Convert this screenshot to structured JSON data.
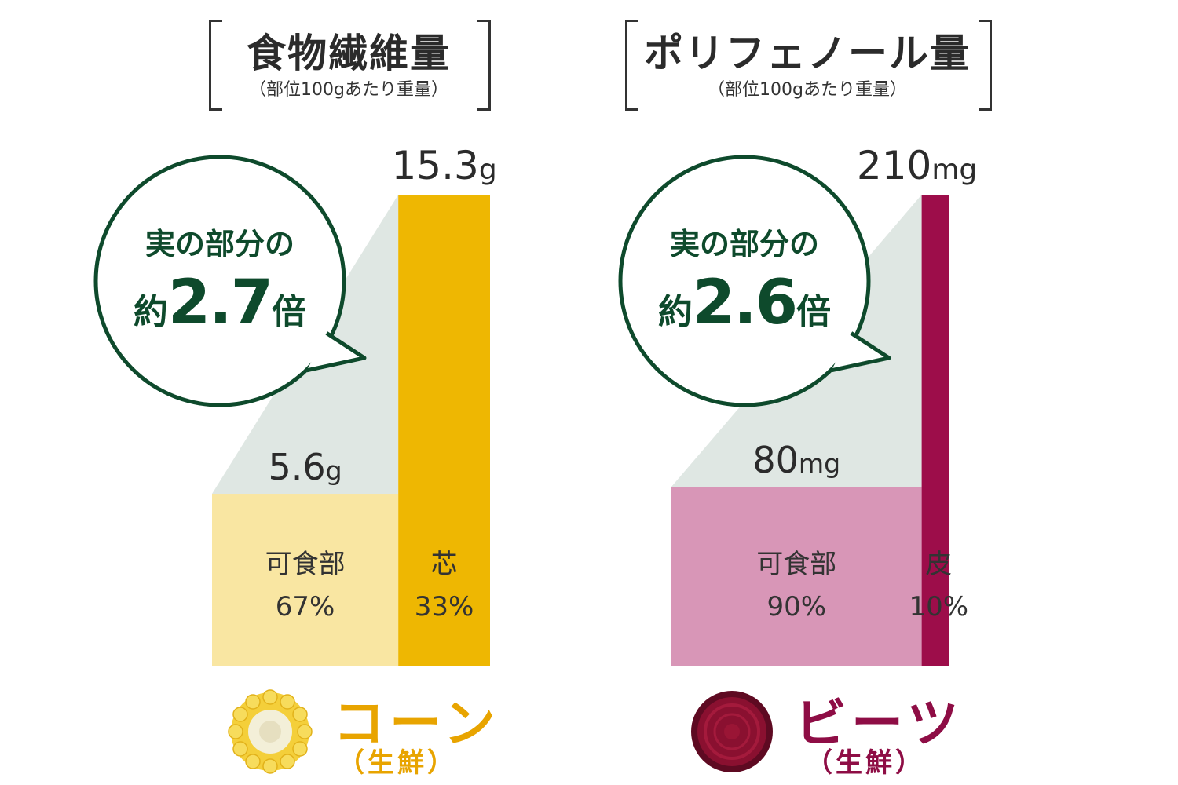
{
  "panels": [
    {
      "title": "食物繊維量",
      "subtitle": "（部位100gあたり重量）",
      "callout_line1": "実の部分の",
      "callout_prefix": "約",
      "callout_value": "2.7",
      "callout_suffix": "倍",
      "food_name": "コーン",
      "food_note": "（生鮮）",
      "colors": {
        "accent": "#eeb702",
        "light": "#f9e6a2",
        "food": "#e8a400",
        "shade": "#dfe7e3",
        "ring": "#0e4a2c"
      }
    },
    {
      "title": "ポリフェノール量",
      "subtitle": "（部位100gあたり重量）",
      "callout_line1": "実の部分の",
      "callout_prefix": "約",
      "callout_value": "2.6",
      "callout_suffix": "倍",
      "food_name": "ビーツ",
      "food_note": "（生鮮）",
      "colors": {
        "accent": "#9d0d4a",
        "light": "#d896b7",
        "food": "#8e0d45",
        "shade": "#dfe7e3",
        "ring": "#0e4a2c"
      }
    }
  ],
  "chart_data": [
    {
      "type": "bar",
      "title": "食物繊維量",
      "subtitle": "（部位100gあたり重量）",
      "unit": "g",
      "categories": [
        "可食部",
        "芯"
      ],
      "values": [
        5.6,
        15.3
      ],
      "value_labels": [
        "5.6",
        "15.3"
      ],
      "shares": [
        67,
        33
      ],
      "share_labels": [
        "67%",
        "33%"
      ],
      "ylim": [
        0,
        15.3
      ]
    },
    {
      "type": "bar",
      "title": "ポリフェノール量",
      "subtitle": "（部位100gあたり重量）",
      "unit": "mg",
      "categories": [
        "可食部",
        "皮"
      ],
      "values": [
        80,
        210
      ],
      "value_labels": [
        "80",
        "210"
      ],
      "shares": [
        90,
        10
      ],
      "share_labels": [
        "90%",
        "10%"
      ],
      "ylim": [
        0,
        210
      ]
    }
  ]
}
